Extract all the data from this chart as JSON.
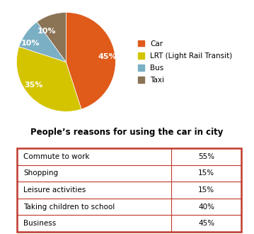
{
  "pie_values": [
    45,
    35,
    10,
    10
  ],
  "pie_labels": [
    "45%",
    "35%",
    "10%",
    "10%"
  ],
  "pie_colors": [
    "#E05A1A",
    "#D4C400",
    "#7BAFC4",
    "#8B7355"
  ],
  "legend_labels": [
    "Car",
    "LRT (Light Rail Transit)",
    "Bus",
    "Taxi"
  ],
  "table_title": "People’s reasons for using the car in city",
  "table_rows": [
    [
      "Commute to work",
      "55%"
    ],
    [
      "Shopping",
      "15%"
    ],
    [
      "Leisure activities",
      "15%"
    ],
    [
      "Taking children to school",
      "40%"
    ],
    [
      "Business",
      "45%"
    ]
  ],
  "table_border_color": "#C0392B",
  "background_color": "#FFFFFF",
  "title_fontsize": 8.5,
  "pie_fontsize": 8,
  "legend_fontsize": 7.5,
  "table_fontsize": 7.5
}
